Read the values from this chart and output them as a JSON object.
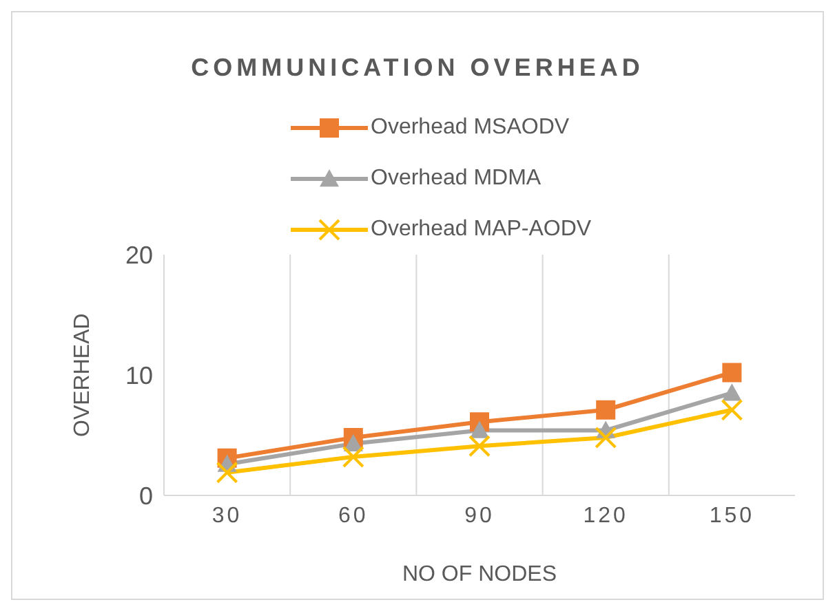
{
  "chart_data": {
    "type": "line",
    "title": "COMMUNICATION OVERHEAD",
    "xlabel": "NO OF NODES",
    "ylabel": "OVERHEAD",
    "categories": [
      "30",
      "60",
      "90",
      "120",
      "150"
    ],
    "series": [
      {
        "name": "Overhead MSAODV",
        "color": "#ed7d31",
        "marker": "square",
        "values": [
          3.1,
          4.8,
          6.1,
          7.1,
          10.2
        ]
      },
      {
        "name": "Overhead MDMA",
        "color": "#a5a5a5",
        "marker": "triangle",
        "values": [
          2.6,
          4.3,
          5.4,
          5.4,
          8.5
        ]
      },
      {
        "name": "Overhead MAP-AODV",
        "color": "#ffc000",
        "marker": "cross",
        "values": [
          1.9,
          3.2,
          4.1,
          4.8,
          7.1
        ]
      }
    ],
    "ylim": [
      0,
      20
    ],
    "yticks": [
      0,
      10,
      20
    ],
    "grid": "x",
    "legend": "top"
  }
}
